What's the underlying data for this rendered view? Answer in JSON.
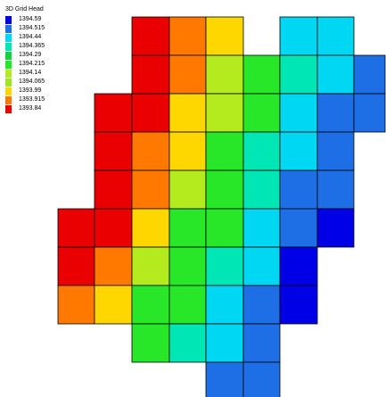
{
  "legend": {
    "title": "3D Grid Head",
    "entries": [
      {
        "label": "1394.59",
        "color": "#0000e6"
      },
      {
        "label": "1394.515",
        "color": "#1e6ee6"
      },
      {
        "label": "1394.44",
        "color": "#00d7f2"
      },
      {
        "label": "1394.365",
        "color": "#00e6b4"
      },
      {
        "label": "1394.29",
        "color": "#14d23c"
      },
      {
        "label": "1394.215",
        "color": "#28e628"
      },
      {
        "label": "1394.14",
        "color": "#b4eb1e"
      },
      {
        "label": "1394.065",
        "color": "#a0e61e"
      },
      {
        "label": "1393.99",
        "color": "#ffd700"
      },
      {
        "label": "1393.915",
        "color": "#ff7800"
      },
      {
        "label": "1393.84",
        "color": "#eb0000"
      }
    ]
  },
  "grid": {
    "cells": [
      {
        "row": 0,
        "col": 2,
        "color": "#eb0000"
      },
      {
        "row": 0,
        "col": 3,
        "color": "#ff7800"
      },
      {
        "row": 0,
        "col": 4,
        "color": "#ffd700"
      },
      {
        "row": 0,
        "col": 6,
        "color": "#00d7f2"
      },
      {
        "row": 0,
        "col": 7,
        "color": "#00d7f2"
      },
      {
        "row": 1,
        "col": 2,
        "color": "#eb0000"
      },
      {
        "row": 1,
        "col": 3,
        "color": "#ff7800"
      },
      {
        "row": 1,
        "col": 4,
        "color": "#b4eb1e"
      },
      {
        "row": 1,
        "col": 5,
        "color": "#28e628"
      },
      {
        "row": 1,
        "col": 6,
        "color": "#00e6b4"
      },
      {
        "row": 1,
        "col": 7,
        "color": "#00d7f2"
      },
      {
        "row": 1,
        "col": 8,
        "color": "#1e6ee6"
      },
      {
        "row": 2,
        "col": 1,
        "color": "#eb0000"
      },
      {
        "row": 2,
        "col": 2,
        "color": "#eb0000"
      },
      {
        "row": 2,
        "col": 3,
        "color": "#ffd700"
      },
      {
        "row": 2,
        "col": 4,
        "color": "#b4eb1e"
      },
      {
        "row": 2,
        "col": 5,
        "color": "#28e628"
      },
      {
        "row": 2,
        "col": 6,
        "color": "#00d7f2"
      },
      {
        "row": 2,
        "col": 7,
        "color": "#1e6ee6"
      },
      {
        "row": 2,
        "col": 8,
        "color": "#1e6ee6"
      },
      {
        "row": 3,
        "col": 1,
        "color": "#eb0000"
      },
      {
        "row": 3,
        "col": 2,
        "color": "#ff7800"
      },
      {
        "row": 3,
        "col": 3,
        "color": "#ffd700"
      },
      {
        "row": 3,
        "col": 4,
        "color": "#28e628"
      },
      {
        "row": 3,
        "col": 5,
        "color": "#00e6b4"
      },
      {
        "row": 3,
        "col": 6,
        "color": "#00d7f2"
      },
      {
        "row": 3,
        "col": 7,
        "color": "#1e6ee6"
      },
      {
        "row": 4,
        "col": 1,
        "color": "#eb0000"
      },
      {
        "row": 4,
        "col": 2,
        "color": "#ff7800"
      },
      {
        "row": 4,
        "col": 3,
        "color": "#b4eb1e"
      },
      {
        "row": 4,
        "col": 4,
        "color": "#28e628"
      },
      {
        "row": 4,
        "col": 5,
        "color": "#00e6b4"
      },
      {
        "row": 4,
        "col": 6,
        "color": "#1e6ee6"
      },
      {
        "row": 4,
        "col": 7,
        "color": "#1e6ee6"
      },
      {
        "row": 5,
        "col": 0,
        "color": "#eb0000"
      },
      {
        "row": 5,
        "col": 1,
        "color": "#eb0000"
      },
      {
        "row": 5,
        "col": 2,
        "color": "#ffd700"
      },
      {
        "row": 5,
        "col": 3,
        "color": "#28e628"
      },
      {
        "row": 5,
        "col": 4,
        "color": "#28e628"
      },
      {
        "row": 5,
        "col": 5,
        "color": "#00d7f2"
      },
      {
        "row": 5,
        "col": 6,
        "color": "#1e6ee6"
      },
      {
        "row": 5,
        "col": 7,
        "color": "#0000e6"
      },
      {
        "row": 6,
        "col": 0,
        "color": "#eb0000"
      },
      {
        "row": 6,
        "col": 1,
        "color": "#ff7800"
      },
      {
        "row": 6,
        "col": 2,
        "color": "#b4eb1e"
      },
      {
        "row": 6,
        "col": 3,
        "color": "#28e628"
      },
      {
        "row": 6,
        "col": 4,
        "color": "#00e6b4"
      },
      {
        "row": 6,
        "col": 5,
        "color": "#00d7f2"
      },
      {
        "row": 6,
        "col": 6,
        "color": "#0000e6"
      },
      {
        "row": 7,
        "col": 0,
        "color": "#ff7800"
      },
      {
        "row": 7,
        "col": 1,
        "color": "#ffd700"
      },
      {
        "row": 7,
        "col": 2,
        "color": "#28e628"
      },
      {
        "row": 7,
        "col": 3,
        "color": "#28e628"
      },
      {
        "row": 7,
        "col": 4,
        "color": "#00d7f2"
      },
      {
        "row": 7,
        "col": 5,
        "color": "#1e6ee6"
      },
      {
        "row": 7,
        "col": 6,
        "color": "#0000e6"
      },
      {
        "row": 8,
        "col": 2,
        "color": "#28e628"
      },
      {
        "row": 8,
        "col": 3,
        "color": "#00e6b4"
      },
      {
        "row": 8,
        "col": 4,
        "color": "#00d7f2"
      },
      {
        "row": 8,
        "col": 5,
        "color": "#1e6ee6"
      },
      {
        "row": 9,
        "col": 4,
        "color": "#1e6ee6"
      },
      {
        "row": 9,
        "col": 5,
        "color": "#1e6ee6"
      }
    ]
  }
}
